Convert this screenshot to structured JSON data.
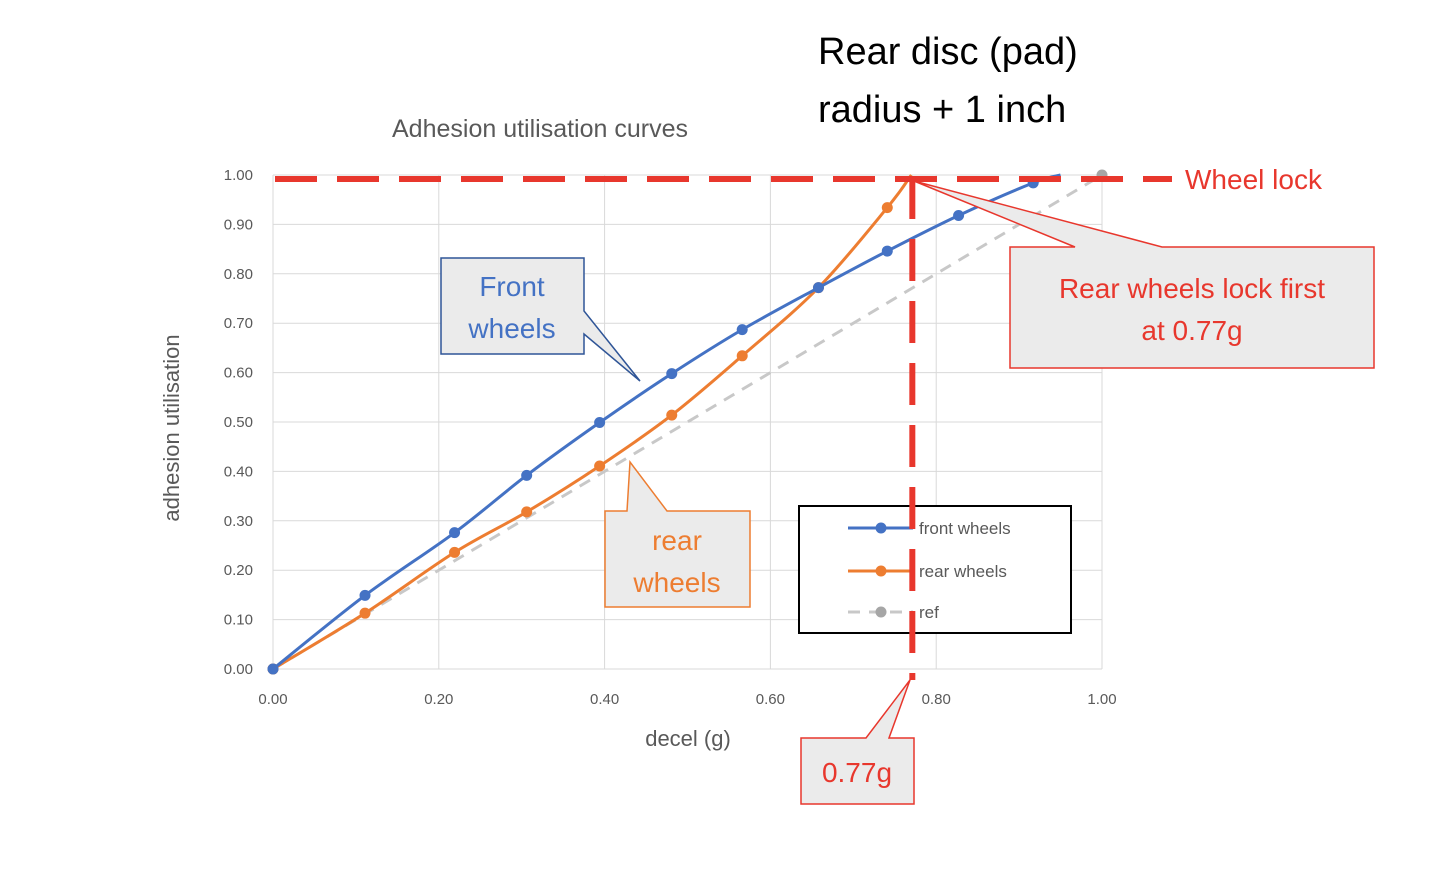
{
  "heading": {
    "line1": "Rear disc (pad)",
    "line2": "radius + 1 inch"
  },
  "annotations": {
    "wheel_lock": "Wheel lock",
    "front_callout": [
      "Front",
      "wheels"
    ],
    "rear_callout": [
      "rear",
      "wheels"
    ],
    "lock_callout": [
      "Rear wheels lock first",
      "at 0.77g"
    ],
    "decel_callout": "0.77g",
    "lock_decel": 0.77,
    "lock_level": 1.0
  },
  "colors": {
    "front": "#4472c4",
    "rear": "#ed7d31",
    "ref": "#c8c8c8",
    "grid": "#d9d9d9",
    "annotation_red": "#e8372d",
    "callout_fill": "#ebebeb"
  },
  "chart_data": {
    "type": "line",
    "title": "Adhesion utilisation curves",
    "xlabel": "decel (g)",
    "ylabel": "adhesion utilisation",
    "xlim": [
      0,
      1
    ],
    "ylim": [
      0,
      1
    ],
    "x_ticks": [
      "0.00",
      "0.20",
      "0.40",
      "0.60",
      "0.80",
      "1.00"
    ],
    "y_ticks": [
      "0.00",
      "0.10",
      "0.20",
      "0.30",
      "0.40",
      "0.50",
      "0.60",
      "0.70",
      "0.80",
      "0.90",
      "1.00"
    ],
    "grid": true,
    "legend_position": "lower-right",
    "series": [
      {
        "name": "front wheels",
        "x": [
          0,
          0.111,
          0.219,
          0.306,
          0.394,
          0.481,
          0.566,
          0.658,
          0.741,
          0.827,
          0.917,
          0.95
        ],
        "y": [
          0,
          0.149,
          0.276,
          0.392,
          0.499,
          0.598,
          0.687,
          0.772,
          0.846,
          0.918,
          0.984,
          1.0
        ],
        "markers": [
          true,
          true,
          true,
          true,
          true,
          true,
          true,
          true,
          true,
          true,
          true,
          false
        ]
      },
      {
        "name": "rear wheels",
        "x": [
          0,
          0.111,
          0.219,
          0.306,
          0.394,
          0.481,
          0.566,
          0.658,
          0.741,
          0.77
        ],
        "y": [
          0,
          0.113,
          0.236,
          0.318,
          0.411,
          0.514,
          0.634,
          0.772,
          0.934,
          1.0
        ],
        "markers": [
          true,
          true,
          true,
          true,
          true,
          true,
          true,
          true,
          true,
          false
        ]
      },
      {
        "name": "ref",
        "x": [
          0,
          1
        ],
        "y": [
          0,
          1
        ],
        "markers": [
          true,
          true
        ],
        "dashed": true
      }
    ]
  }
}
